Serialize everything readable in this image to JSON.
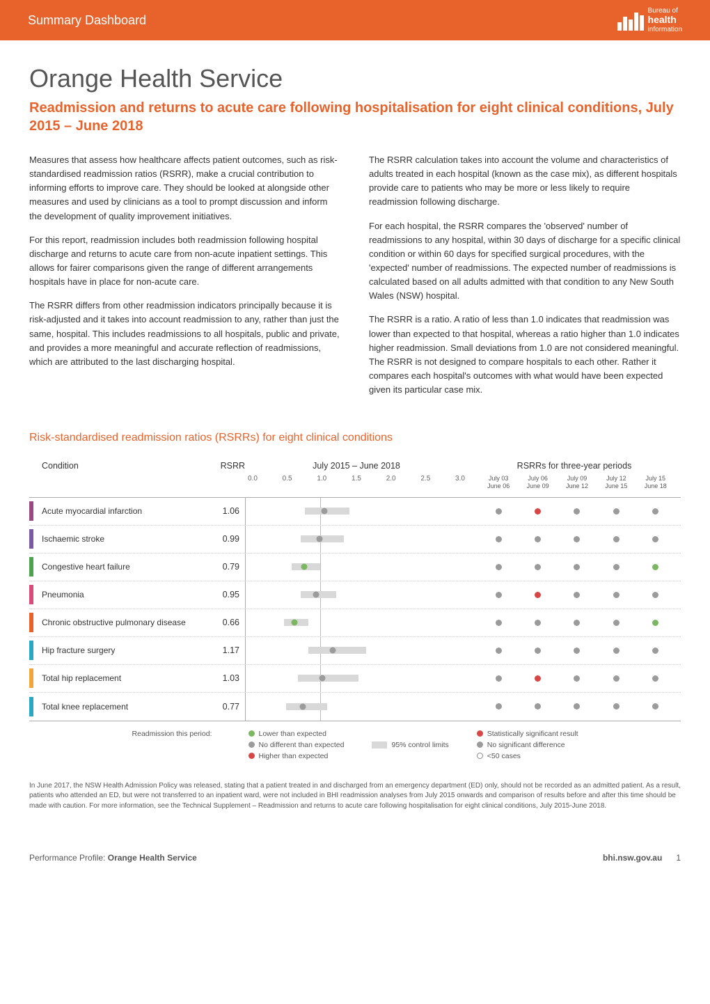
{
  "header": {
    "banner_title": "Summary Dashboard",
    "logo": {
      "pretext": "Bureau of",
      "main": "health",
      "sub": "information"
    },
    "banner_bg": "#e8632b"
  },
  "title": "Orange Health Service",
  "subtitle": "Readmission and returns to acute care following hospitalisation for eight clinical conditions, July 2015 – June 2018",
  "body": {
    "left": [
      "Measures that assess how healthcare affects patient outcomes, such as risk-standardised readmission ratios (RSRR), make a crucial contribution to informing efforts to improve care. They should be looked at alongside other measures and used by clinicians as a tool to prompt discussion and inform the development of quality improvement initiatives.",
      "For this report, readmission includes both readmission following hospital discharge and returns to acute care from non-acute inpatient settings. This allows for fairer comparisons given the range of different arrangements hospitals have in place for non-acute care.",
      "The RSRR differs from other readmission indicators principally because it is risk-adjusted and it takes into account readmission to any, rather than just the same, hospital. This includes readmissions to all hospitals, public and private, and provides a more meaningful and accurate reflection of readmissions, which are attributed to the last discharging hospital."
    ],
    "right": [
      "The RSRR calculation takes into account the volume and characteristics of adults treated in each hospital (known as the case mix), as different hospitals provide care to patients who may be more or less likely to require readmission following discharge.",
      "For each hospital, the RSRR compares the 'observed' number of readmissions to any hospital, within 30 days of discharge for a specific clinical condition or within 60 days for specified surgical procedures, with the 'expected' number of readmissions. The expected number of readmissions is calculated based on all adults admitted with that condition to any New South Wales (NSW) hospital.",
      "The RSRR is a ratio. A ratio of less than 1.0 indicates that readmission was lower than expected to that hospital, whereas a ratio higher than 1.0 indicates higher readmission. Small deviations from 1.0 are not considered meaningful. The RSRR is not designed to compare hospitals to each other. Rather it compares each hospital's outcomes with what would have been expected given its particular case mix."
    ]
  },
  "chart": {
    "title": "Risk-standardised readmission ratios (RSRRs) for eight clinical conditions",
    "headers": {
      "condition": "Condition",
      "rsrr": "RSRR",
      "period_plot": "July 2015 – June 2018",
      "periods_title": "RSRRs for three-year periods"
    },
    "axis": {
      "min": 0.0,
      "max": 3.0,
      "ticks": [
        "0.0",
        "0.5",
        "1.0",
        "1.5",
        "2.0",
        "2.5",
        "3.0"
      ],
      "refline_at": 1.0
    },
    "period_columns": [
      "July 03 – June 06",
      "July 06 – June 09",
      "July 09 – June 12",
      "July 12 – June 15",
      "July 15 – June 18"
    ],
    "colors": {
      "grey": "#9b9b9b",
      "green": "#7bb661",
      "red": "#d84646",
      "ci_fill": "#d8d8d8",
      "gridline": "#bbbbbb"
    },
    "rows": [
      {
        "name": "Acute myocardial infarction",
        "swatch": "#9a4a83",
        "rsrr": "1.06",
        "point": 1.06,
        "ci_lo": 0.8,
        "ci_hi": 1.4,
        "dot_color": "grey",
        "periods": [
          "grey",
          "red",
          "grey",
          "grey",
          "grey"
        ]
      },
      {
        "name": "Ischaemic stroke",
        "swatch": "#7a5aa3",
        "rsrr": "0.99",
        "point": 0.99,
        "ci_lo": 0.74,
        "ci_hi": 1.32,
        "dot_color": "grey",
        "periods": [
          "grey",
          "grey",
          "grey",
          "grey",
          "grey"
        ]
      },
      {
        "name": "Congestive heart failure",
        "swatch": "#4da24d",
        "rsrr": "0.79",
        "point": 0.79,
        "ci_lo": 0.62,
        "ci_hi": 1.0,
        "dot_color": "green",
        "periods": [
          "grey",
          "grey",
          "grey",
          "grey",
          "green"
        ]
      },
      {
        "name": "Pneumonia",
        "swatch": "#d94c7a",
        "rsrr": "0.95",
        "point": 0.95,
        "ci_lo": 0.74,
        "ci_hi": 1.22,
        "dot_color": "grey",
        "periods": [
          "grey",
          "red",
          "grey",
          "grey",
          "grey"
        ]
      },
      {
        "name": "Chronic obstructive pulmonary disease",
        "swatch": "#e8632b",
        "rsrr": "0.66",
        "point": 0.66,
        "ci_lo": 0.52,
        "ci_hi": 0.84,
        "dot_color": "green",
        "periods": [
          "grey",
          "grey",
          "grey",
          "grey",
          "green"
        ]
      },
      {
        "name": "Hip fracture surgery",
        "swatch": "#2aa7c3",
        "rsrr": "1.17",
        "point": 1.17,
        "ci_lo": 0.84,
        "ci_hi": 1.62,
        "dot_color": "grey",
        "periods": [
          "grey",
          "grey",
          "grey",
          "grey",
          "grey"
        ]
      },
      {
        "name": "Total hip replacement",
        "swatch": "#f2a53a",
        "rsrr": "1.03",
        "point": 1.03,
        "ci_lo": 0.7,
        "ci_hi": 1.52,
        "dot_color": "grey",
        "periods": [
          "grey",
          "red",
          "grey",
          "grey",
          "grey"
        ]
      },
      {
        "name": "Total knee replacement",
        "swatch": "#2aa7c3",
        "rsrr": "0.77",
        "point": 0.77,
        "ci_lo": 0.54,
        "ci_hi": 1.1,
        "dot_color": "grey",
        "periods": [
          "grey",
          "grey",
          "grey",
          "grey",
          "grey"
        ]
      }
    ],
    "legend_left_label": "Readmission this period:",
    "legend_left": [
      {
        "type": "dot",
        "color": "green",
        "label": "Lower than expected"
      },
      {
        "type": "dot",
        "color": "grey",
        "label": "No different than expected"
      },
      {
        "type": "dot",
        "color": "red",
        "label": "Higher than expected"
      }
    ],
    "legend_mid": {
      "label": "95% control limits"
    },
    "legend_right": [
      {
        "type": "dot",
        "color": "red",
        "label": "Statistically significant result"
      },
      {
        "type": "dot",
        "color": "grey",
        "label": "No significant difference"
      },
      {
        "type": "ring",
        "label": "<50 cases"
      }
    ]
  },
  "footnote": "In June 2017, the NSW Health Admission Policy was released, stating that a patient treated in and discharged from an emergency department (ED) only, should not be recorded as an admitted patient. As a result, patients who attended an ED, but were not transferred to an inpatient ward, were not included in BHI readmission analyses from July 2015 onwards and comparison of results before and after this time should be made with caution. For more information, see the Technical Supplement – Readmission and returns to acute care following hospitalisation for eight clinical conditions, July 2015-June 2018.",
  "footer": {
    "profile_prefix": "Performance Profile:",
    "profile_name": "Orange Health Service",
    "site": "bhi.nsw.gov.au",
    "page_no": "1"
  }
}
